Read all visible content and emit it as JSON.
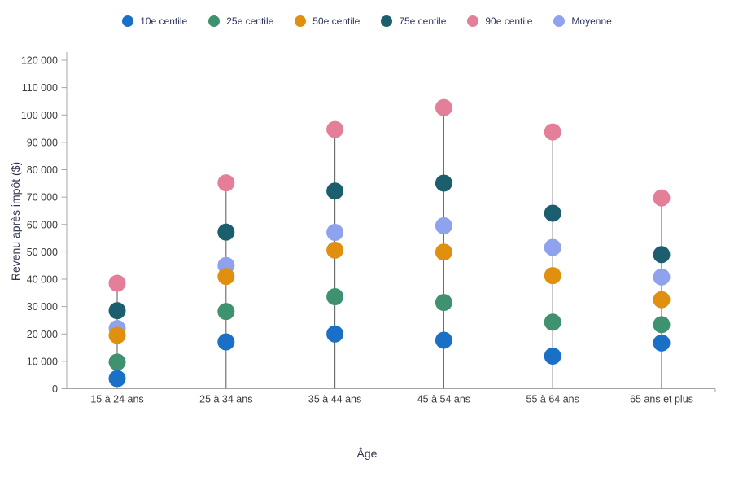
{
  "chart_data": {
    "type": "scatter",
    "title": "",
    "xlabel": "Âge",
    "ylabel": "Revenu après impôt ($)",
    "categories": [
      "15 à 24 ans",
      "25 à 34 ans",
      "35 à 44 ans",
      "45 à 54 ans",
      "55 à 64 ans",
      "65 ans et plus"
    ],
    "series": [
      {
        "name": "10e centile",
        "color": "#1a70c6",
        "values": [
          3700,
          17100,
          20000,
          17700,
          11900,
          16700
        ]
      },
      {
        "name": "25e centile",
        "color": "#3f9270",
        "values": [
          9700,
          28200,
          33600,
          31500,
          24300,
          23400
        ]
      },
      {
        "name": "50e centile",
        "color": "#e0900e",
        "values": [
          19500,
          41000,
          50600,
          49900,
          41300,
          32500
        ]
      },
      {
        "name": "75e centile",
        "color": "#1b5f6e",
        "values": [
          28500,
          57200,
          72200,
          75100,
          64100,
          49000
        ]
      },
      {
        "name": "90e centile",
        "color": "#e57e98",
        "values": [
          38500,
          75200,
          94700,
          102700,
          93800,
          69700
        ]
      },
      {
        "name": "Moyenne",
        "color": "#8ea2ee",
        "values": [
          22000,
          45000,
          57100,
          59500,
          51600,
          40800
        ]
      }
    ],
    "ylim": [
      0,
      120000
    ],
    "ytick_step": 10000,
    "ytick_labels": [
      "0",
      "10 000",
      "20 000",
      "30 000",
      "40 000",
      "50 000",
      "60 000",
      "70 000",
      "80 000",
      "90 000",
      "100 000",
      "110 000",
      "120 000"
    ],
    "legend_position": "top",
    "grid": false
  }
}
